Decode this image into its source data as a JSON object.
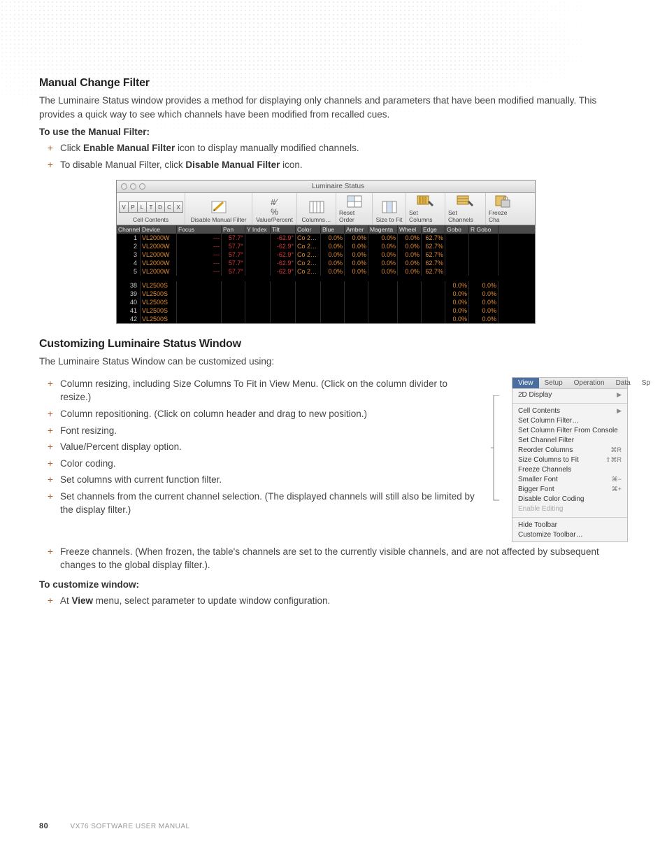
{
  "page": {
    "number": "80",
    "footer": "VX76 SOFTWARE USER MANUAL"
  },
  "colors": {
    "text": "#333333",
    "accent_plus": "#b05a2a",
    "window_bg": "#000000",
    "orange": "#e28b2f",
    "red": "#d93a3a",
    "menu_highlight": "#4a6fa0"
  },
  "section1": {
    "title": "Manual Change Filter",
    "intro": "The Luminaire Status window provides a method for displaying only channels and parameters that have been modified manually. This provides a quick way to see which channels have been modified from recalled cues.",
    "sub": "To use the Manual Filter:",
    "bullets": [
      {
        "pre": "Click ",
        "bold": "Enable Manual Filter",
        "post": " icon to display manually modified channels."
      },
      {
        "pre": "To disable Manual Filter, click ",
        "bold": "Disable Manual Filter",
        "post": " icon."
      }
    ]
  },
  "luminaire_window": {
    "title": "Luminaire Status",
    "toolbar": {
      "cell_contents_label": "Cell Contents",
      "cell_contents_buttons": [
        "V",
        "P",
        "L",
        "T",
        "D",
        "C",
        "X"
      ],
      "items": [
        "Disable Manual Filter",
        "Value/Percent",
        "Columns…",
        "Reset Order",
        "Size to Fit",
        "Set Columns",
        "Set Channels",
        "Freeze Cha"
      ]
    },
    "columns": [
      "Channel",
      "Device",
      "Focus",
      "Pan",
      "Y Index",
      "Tilt",
      "Color",
      "Blue",
      "Amber",
      "Magenta",
      "Wheel",
      "Edge",
      "Gobo",
      "R Gobo"
    ],
    "rowsA": [
      {
        "ch": "1",
        "dev": "VL2000W",
        "focus": "---",
        "pan": "57.7°",
        "tilt": "-62.9°",
        "color": "Co 2…",
        "blue": "0.0%",
        "amber": "0.0%",
        "mag": "0.0%",
        "wheel": "0.0%",
        "edge": "62.7%"
      },
      {
        "ch": "2",
        "dev": "VL2000W",
        "focus": "---",
        "pan": "57.7°",
        "tilt": "-62.9°",
        "color": "Co 2…",
        "blue": "0.0%",
        "amber": "0.0%",
        "mag": "0.0%",
        "wheel": "0.0%",
        "edge": "62.7%"
      },
      {
        "ch": "3",
        "dev": "VL2000W",
        "focus": "---",
        "pan": "57.7°",
        "tilt": "-62.9°",
        "color": "Co 2…",
        "blue": "0.0%",
        "amber": "0.0%",
        "mag": "0.0%",
        "wheel": "0.0%",
        "edge": "62.7%"
      },
      {
        "ch": "4",
        "dev": "VL2000W",
        "focus": "---",
        "pan": "57.7°",
        "tilt": "-62.9°",
        "color": "Co 2…",
        "blue": "0.0%",
        "amber": "0.0%",
        "mag": "0.0%",
        "wheel": "0.0%",
        "edge": "62.7%"
      },
      {
        "ch": "5",
        "dev": "VL2000W",
        "focus": "---",
        "pan": "57.7°",
        "tilt": "-62.9°",
        "color": "Co 2…",
        "blue": "0.0%",
        "amber": "0.0%",
        "mag": "0.0%",
        "wheel": "0.0%",
        "edge": "62.7%"
      }
    ],
    "rowsB": [
      {
        "ch": "38",
        "dev": "VL2500S",
        "gobo": "0.0%",
        "rgobo": "0.0%"
      },
      {
        "ch": "39",
        "dev": "VL2500S",
        "gobo": "0.0%",
        "rgobo": "0.0%"
      },
      {
        "ch": "40",
        "dev": "VL2500S",
        "gobo": "0.0%",
        "rgobo": "0.0%"
      },
      {
        "ch": "41",
        "dev": "VL2500S",
        "gobo": "0.0%",
        "rgobo": "0.0%"
      },
      {
        "ch": "42",
        "dev": "VL2500S",
        "gobo": "0.0%",
        "rgobo": "0.0%"
      }
    ]
  },
  "section2": {
    "title": "Customizing Luminaire Status Window",
    "intro": "The Luminaire Status Window can be customized using:",
    "bullets": [
      "Column resizing, including Size Columns To Fit in View Menu. (Click on the column divider to resize.)",
      "Column repositioning. (Click on column header and drag to new position.)",
      "Font resizing.",
      "Value/Percent display option.",
      "Color coding.",
      "Set columns with current function filter.",
      "Set channels from the current channel selection. (The displayed channels will still also be limited by the display filter.)",
      "Freeze channels. (When frozen, the table's channels are set to the currently visible channels, and are not affected by subsequent changes to the global display filter.)."
    ],
    "sub2": "To customize window:",
    "bullets2": [
      {
        "pre": "At ",
        "bold": "View",
        "post": " menu, select parameter to update window configuration."
      }
    ]
  },
  "view_menu": {
    "bar": [
      "View",
      "Setup",
      "Operation",
      "Data",
      "Sp"
    ],
    "top": [
      {
        "label": "2D Display",
        "arrow": true
      }
    ],
    "g1": [
      {
        "label": "Cell Contents",
        "arrow": true
      },
      {
        "label": "Set Column Filter…"
      },
      {
        "label": "Set Column Filter From Console"
      },
      {
        "label": "Set Channel Filter"
      },
      {
        "label": "Reorder Columns",
        "sc": "⌘R"
      },
      {
        "label": "Size Columns to Fit",
        "sc": "⇧⌘R"
      },
      {
        "label": "Freeze Channels"
      },
      {
        "label": "Smaller Font",
        "sc": "⌘−"
      },
      {
        "label": "Bigger Font",
        "sc": "⌘+"
      },
      {
        "label": "Disable Color Coding"
      },
      {
        "label": "Enable Editing",
        "dim": true
      }
    ],
    "g2": [
      {
        "label": "Hide Toolbar"
      },
      {
        "label": "Customize Toolbar…"
      }
    ]
  }
}
